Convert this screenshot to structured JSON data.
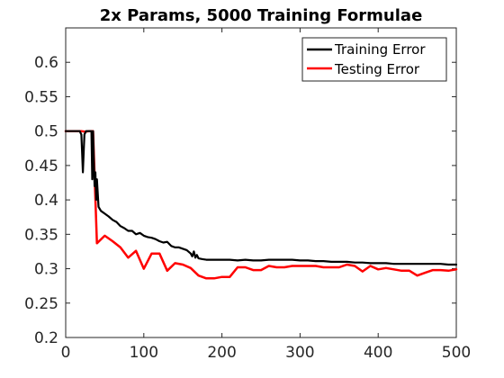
{
  "chart_data": {
    "type": "line",
    "title": "2x Params, 5000 Training Formulae",
    "xlabel": "",
    "ylabel": "",
    "xlim": [
      0,
      500
    ],
    "ylim": [
      0.2,
      0.65
    ],
    "xticks": [
      "0",
      "100",
      "200",
      "300",
      "400",
      "500"
    ],
    "yticks": [
      "0.2",
      "0.25",
      "0.3",
      "0.35",
      "0.4",
      "0.45",
      "0.5",
      "0.55",
      "0.6"
    ],
    "grid": false,
    "legend_position": "top-right",
    "series": [
      {
        "name": "Training Error",
        "color": "#000000",
        "x": [
          0,
          5,
          10,
          15,
          18,
          20,
          21,
          22,
          23,
          24,
          26,
          28,
          30,
          32,
          33,
          34,
          35,
          36,
          37,
          38,
          39,
          40,
          42,
          45,
          50,
          55,
          60,
          65,
          70,
          75,
          80,
          85,
          90,
          95,
          100,
          105,
          110,
          115,
          120,
          125,
          130,
          135,
          140,
          145,
          150,
          155,
          160,
          162,
          164,
          166,
          168,
          170,
          175,
          180,
          190,
          200,
          210,
          220,
          230,
          240,
          250,
          260,
          270,
          280,
          290,
          300,
          310,
          320,
          330,
          340,
          350,
          360,
          370,
          380,
          390,
          400,
          410,
          420,
          430,
          440,
          450,
          460,
          470,
          480,
          490,
          500
        ],
        "values": [
          0.5,
          0.5,
          0.5,
          0.5,
          0.5,
          0.495,
          0.47,
          0.44,
          0.47,
          0.495,
          0.5,
          0.5,
          0.5,
          0.5,
          0.5,
          0.43,
          0.5,
          0.46,
          0.42,
          0.44,
          0.4,
          0.43,
          0.39,
          0.384,
          0.38,
          0.376,
          0.371,
          0.368,
          0.362,
          0.359,
          0.355,
          0.355,
          0.35,
          0.352,
          0.348,
          0.346,
          0.345,
          0.343,
          0.34,
          0.338,
          0.339,
          0.333,
          0.331,
          0.331,
          0.329,
          0.327,
          0.322,
          0.318,
          0.325,
          0.316,
          0.32,
          0.315,
          0.314,
          0.313,
          0.313,
          0.313,
          0.313,
          0.312,
          0.313,
          0.312,
          0.312,
          0.313,
          0.313,
          0.313,
          0.313,
          0.312,
          0.312,
          0.311,
          0.311,
          0.31,
          0.31,
          0.31,
          0.309,
          0.309,
          0.308,
          0.308,
          0.308,
          0.307,
          0.307,
          0.307,
          0.307,
          0.307,
          0.307,
          0.307,
          0.306,
          0.306
        ]
      },
      {
        "name": "Testing Error",
        "color": "#ff0000",
        "x": [
          0,
          10,
          20,
          25,
          30,
          35,
          40,
          50,
          60,
          70,
          80,
          90,
          100,
          110,
          120,
          130,
          140,
          150,
          160,
          170,
          180,
          190,
          200,
          210,
          220,
          230,
          240,
          250,
          260,
          270,
          280,
          290,
          300,
          310,
          320,
          330,
          340,
          350,
          360,
          370,
          380,
          390,
          400,
          410,
          420,
          430,
          440,
          450,
          460,
          470,
          480,
          490,
          500
        ],
        "values": [
          0.5,
          0.5,
          0.5,
          0.499,
          0.5,
          0.5,
          0.337,
          0.348,
          0.34,
          0.331,
          0.316,
          0.326,
          0.3,
          0.322,
          0.322,
          0.297,
          0.308,
          0.306,
          0.301,
          0.29,
          0.286,
          0.286,
          0.288,
          0.288,
          0.302,
          0.302,
          0.298,
          0.298,
          0.304,
          0.302,
          0.302,
          0.304,
          0.304,
          0.304,
          0.304,
          0.302,
          0.302,
          0.302,
          0.306,
          0.304,
          0.296,
          0.304,
          0.299,
          0.301,
          0.299,
          0.297,
          0.297,
          0.29,
          0.294,
          0.298,
          0.298,
          0.297,
          0.299
        ]
      }
    ]
  }
}
